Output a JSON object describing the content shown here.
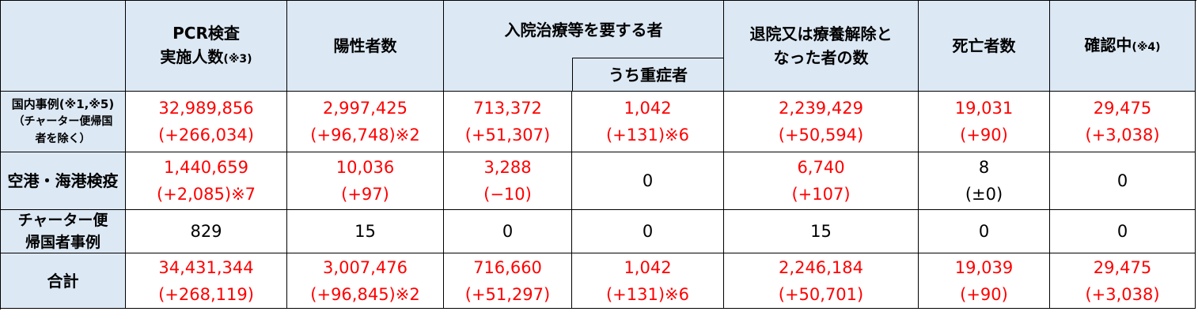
{
  "header": {
    "columns": [
      {
        "text": [
          "PCR検査",
          "実施人数"
        ],
        "note": "(※3)"
      },
      {
        "text": [
          "陽性者数"
        ]
      },
      {
        "text": [
          "入院治療等を要する者"
        ],
        "sub": "うち重症者"
      },
      {
        "text": [
          "退院又は療養解除と",
          "なった者の数"
        ]
      },
      {
        "text": [
          "死亡者数"
        ]
      },
      {
        "text": [
          "確認中"
        ],
        "note": "(※4)"
      }
    ]
  },
  "table": {
    "rows": [
      {
        "label": [
          "国内事例(※1,※5)",
          "（チャーター便帰国",
          "者を除く）"
        ],
        "cells": [
          {
            "value": "32,989,856",
            "change": "(+266,034)",
            "color": "#ff0000"
          },
          {
            "value": "2,997,425",
            "change": "(+96,748)",
            "note": "※2",
            "color": "#ff0000"
          },
          {
            "value": "713,372",
            "change": "(+51,307)",
            "color": "#ff0000"
          },
          {
            "value": "1,042",
            "change": "(+131)",
            "note": "※6",
            "color": "#ff0000"
          },
          {
            "value": "2,239,429",
            "change": "(+50,594)",
            "color": "#ff0000"
          },
          {
            "value": "19,031",
            "change": "(+90)",
            "color": "#ff0000"
          },
          {
            "value": "29,475",
            "change": "(+3,038)",
            "color": "#ff0000"
          }
        ]
      },
      {
        "label": [
          "空港・海港検疫"
        ],
        "cells": [
          {
            "value": "1,440,659",
            "change": "(+2,085)",
            "note": "※7",
            "color": "#ff0000"
          },
          {
            "value": "10,036",
            "change": "(+97)",
            "color": "#ff0000"
          },
          {
            "value": "3,288",
            "change": "(−10)",
            "color": "#ff0000"
          },
          {
            "value": "0",
            "color": "#000000"
          },
          {
            "value": "6,740",
            "change": "(+107)",
            "color": "#ff0000"
          },
          {
            "value": "8",
            "change": "(±0)",
            "color": "#000000"
          },
          {
            "value": "0",
            "color": "#000000"
          }
        ]
      },
      {
        "label": [
          "チャーター便",
          "帰国者事例"
        ],
        "cells": [
          {
            "value": "829",
            "color": "#000000"
          },
          {
            "value": "15",
            "color": "#000000"
          },
          {
            "value": "0",
            "color": "#000000"
          },
          {
            "value": "0",
            "color": "#000000"
          },
          {
            "value": "15",
            "color": "#000000"
          },
          {
            "value": "0",
            "color": "#000000"
          },
          {
            "value": "0",
            "color": "#000000"
          }
        ]
      },
      {
        "label": [
          "合計"
        ],
        "cells": [
          {
            "value": "34,431,344",
            "change": "(+268,119)",
            "color": "#ff0000"
          },
          {
            "value": "3,007,476",
            "change": "(+96,845)",
            "note": "※2",
            "color": "#ff0000"
          },
          {
            "value": "716,660",
            "change": "(+51,297)",
            "color": "#ff0000"
          },
          {
            "value": "1,042",
            "change": "(+131)",
            "note": "※6",
            "color": "#ff0000"
          },
          {
            "value": "2,246,184",
            "change": "(+50,701)",
            "color": "#ff0000"
          },
          {
            "value": "19,039",
            "change": "(+90)",
            "color": "#ff0000"
          },
          {
            "value": "29,475",
            "change": "(+3,038)",
            "color": "#ff0000"
          }
        ]
      }
    ]
  }
}
